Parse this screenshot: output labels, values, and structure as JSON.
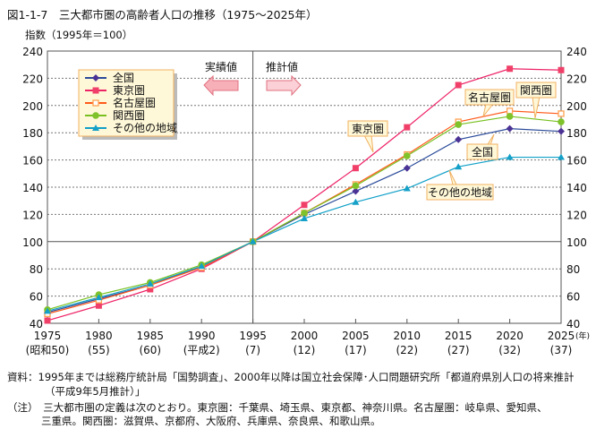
{
  "title": "図1-1-7　三大都市圏の高齢者人口の推移（1975～2025年）",
  "chart_data": {
    "type": "line",
    "ylabel": "指数（1995年＝100）",
    "ylim": [
      40,
      240
    ],
    "yticks": [
      40,
      60,
      80,
      100,
      120,
      140,
      160,
      180,
      200,
      220,
      240
    ],
    "x": [
      1975,
      1980,
      1985,
      1990,
      1995,
      2000,
      2005,
      2010,
      2015,
      2020,
      2025
    ],
    "xtick_labels": [
      "1975",
      "1980",
      "1985",
      "1990",
      "1995",
      "2000",
      "2005",
      "2010",
      "2015",
      "2020",
      "2025"
    ],
    "xtick_sublabels": [
      "(昭和50)",
      "(55)",
      "(60)",
      "(平成2)",
      "(7)",
      "(12)",
      "(17)",
      "(22)",
      "(27)",
      "(32)",
      "(37)"
    ],
    "x_unit": "(年)",
    "grid": true,
    "legend_position": "top-left",
    "annotations": {
      "actual": "実績値",
      "projected": "推計値"
    },
    "series": [
      {
        "name": "全国",
        "color": "#2a4a9a",
        "marker": "diamond",
        "marker_color": "#4b3295",
        "values": [
          48,
          58,
          68,
          82,
          100,
          120,
          137,
          154,
          175,
          183,
          181
        ]
      },
      {
        "name": "東京圏",
        "color": "#ee2266",
        "marker": "square",
        "marker_color": "#f0406a",
        "values": [
          42,
          53,
          65,
          80,
          100,
          127,
          154,
          184,
          215,
          227,
          226
        ]
      },
      {
        "name": "名古屋圏",
        "color": "#ff5a1a",
        "marker": "open-square",
        "marker_color": "#ffa050",
        "values": [
          47,
          57,
          68,
          81,
          100,
          121,
          142,
          164,
          188,
          196,
          194
        ]
      },
      {
        "name": "関西圏",
        "color": "#77c020",
        "marker": "circle",
        "marker_color": "#7fc22a",
        "values": [
          50,
          61,
          70,
          83,
          100,
          121,
          141,
          163,
          186,
          192,
          188
        ]
      },
      {
        "name": "その他の地域",
        "color": "#10a0c8",
        "marker": "triangle",
        "marker_color": "#15a0c8",
        "values": [
          49,
          59,
          69,
          82,
          100,
          117,
          129,
          139,
          155,
          162,
          162
        ]
      }
    ]
  },
  "notes": {
    "source_1": "資料：1995年までは総務庁統計局「国勢調査」、2000年以降は国立社会保障･人口問題研究所「都道府県別人口の将来推計",
    "source_2": "（平成9年5月推計）」",
    "note_1": "（注）　三大都市圏の定義は次のとおり。東京圏：千葉県、埼玉県、東京都、神奈川県。名古屋圏：岐阜県、愛知県、",
    "note_2": "三重県。関西圏：滋賀県、京都府、大阪府、兵庫県、奈良県、和歌山県。"
  }
}
